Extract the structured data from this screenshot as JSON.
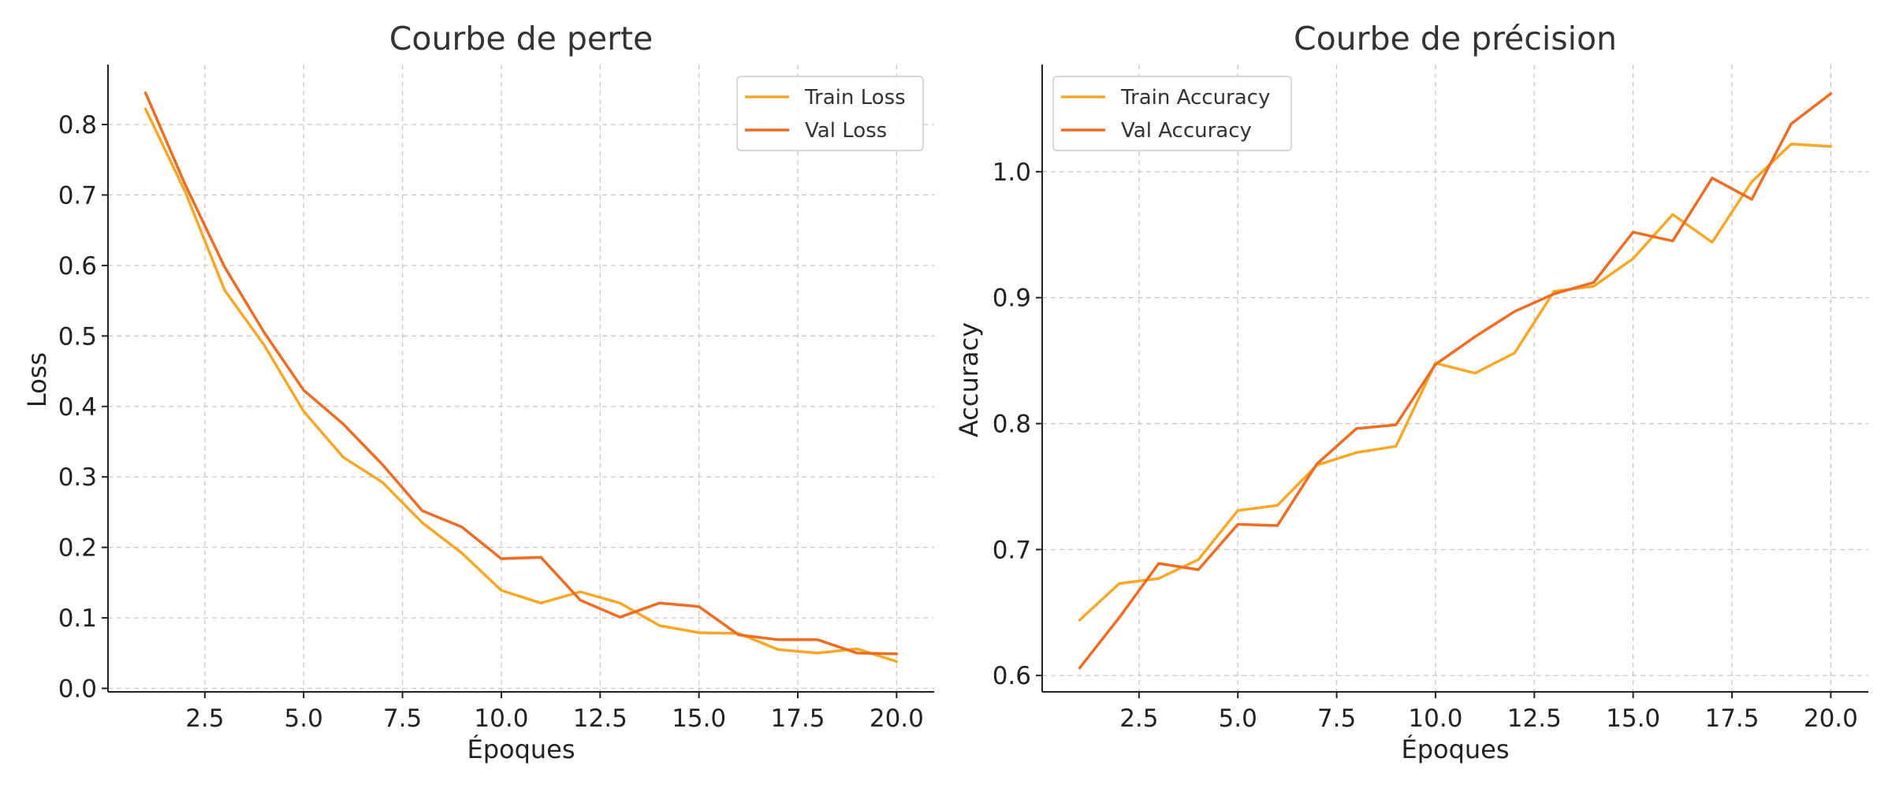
{
  "chart_data": [
    {
      "type": "line",
      "title": "Courbe de perte",
      "xlabel": "Époques",
      "ylabel": "Loss",
      "xlim": [
        0.05,
        20.95
      ],
      "ylim": [
        -0.005,
        0.885
      ],
      "xticks": [
        2.5,
        5.0,
        7.5,
        10.0,
        12.5,
        15.0,
        17.5,
        20.0
      ],
      "xtick_labels": [
        "2.5",
        "5.0",
        "7.5",
        "10.0",
        "12.5",
        "15.0",
        "17.5",
        "20.0"
      ],
      "yticks": [
        0.0,
        0.1,
        0.2,
        0.3,
        0.4,
        0.5,
        0.6,
        0.7,
        0.8
      ],
      "ytick_labels": [
        "0.0",
        "0.1",
        "0.2",
        "0.3",
        "0.4",
        "0.5",
        "0.6",
        "0.7",
        "0.8"
      ],
      "grid": true,
      "legend_position": "top-right",
      "x": [
        1,
        2,
        3,
        4,
        5,
        6,
        7,
        8,
        9,
        10,
        11,
        12,
        13,
        14,
        15,
        16,
        17,
        18,
        19,
        20
      ],
      "series": [
        {
          "name": "Train Loss",
          "color": "#F9A825",
          "values": [
            0.822,
            0.705,
            0.565,
            0.487,
            0.393,
            0.328,
            0.292,
            0.235,
            0.192,
            0.139,
            0.121,
            0.137,
            0.121,
            0.089,
            0.079,
            0.078,
            0.055,
            0.05,
            0.056,
            0.038
          ]
        },
        {
          "name": "Val Loss",
          "color": "#EF6C22",
          "values": [
            0.845,
            0.715,
            0.598,
            0.505,
            0.423,
            0.375,
            0.317,
            0.252,
            0.229,
            0.184,
            0.186,
            0.125,
            0.101,
            0.121,
            0.116,
            0.076,
            0.069,
            0.069,
            0.05,
            0.049
          ]
        }
      ]
    },
    {
      "type": "line",
      "title": "Courbe de précision",
      "xlabel": "Époques",
      "ylabel": "Accuracy",
      "xlim": [
        0.05,
        20.95
      ],
      "ylim": [
        0.587,
        1.085
      ],
      "xticks": [
        2.5,
        5.0,
        7.5,
        10.0,
        12.5,
        15.0,
        17.5,
        20.0
      ],
      "xtick_labels": [
        "2.5",
        "5.0",
        "7.5",
        "10.0",
        "12.5",
        "15.0",
        "17.5",
        "20.0"
      ],
      "yticks": [
        0.6,
        0.7,
        0.8,
        0.9,
        1.0
      ],
      "ytick_labels": [
        "0.6",
        "0.7",
        "0.8",
        "0.9",
        "1.0"
      ],
      "grid": true,
      "legend_position": "top-left",
      "x": [
        1,
        2,
        3,
        4,
        5,
        6,
        7,
        8,
        9,
        10,
        11,
        12,
        13,
        14,
        15,
        16,
        17,
        18,
        19,
        20
      ],
      "series": [
        {
          "name": "Train Accuracy",
          "color": "#F9A825",
          "values": [
            0.644,
            0.673,
            0.677,
            0.692,
            0.731,
            0.735,
            0.767,
            0.777,
            0.782,
            0.848,
            0.84,
            0.856,
            0.905,
            0.909,
            0.931,
            0.966,
            0.944,
            0.992,
            1.022,
            1.02
          ]
        },
        {
          "name": "Val Accuracy",
          "color": "#EF6C22",
          "values": [
            0.606,
            0.646,
            0.689,
            0.684,
            0.72,
            0.719,
            0.768,
            0.796,
            0.799,
            0.847,
            0.869,
            0.889,
            0.903,
            0.912,
            0.952,
            0.945,
            0.995,
            0.978,
            1.038,
            1.062
          ]
        }
      ]
    }
  ]
}
